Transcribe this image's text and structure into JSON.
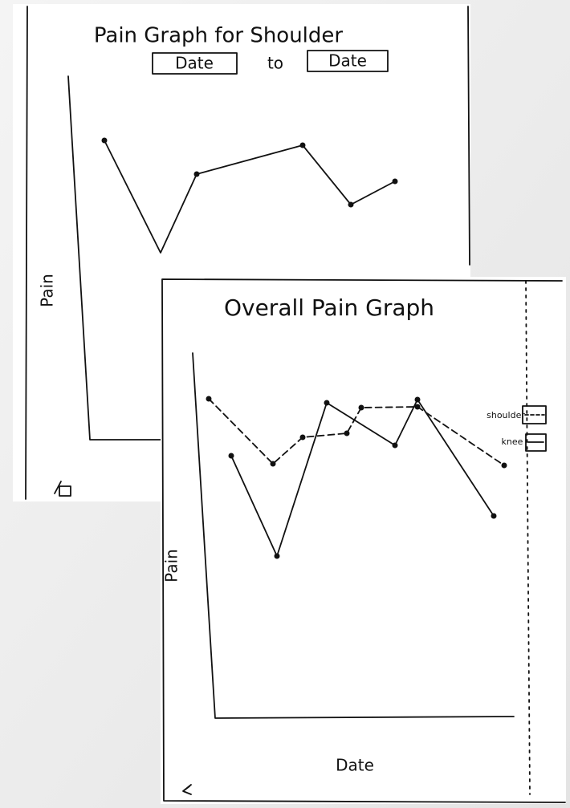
{
  "sketch_1": {
    "title": "Pain Graph for Shoulder",
    "start_date": "Date",
    "separator": "to",
    "end_date": "Date",
    "y_label": "Pain"
  },
  "sketch_2": {
    "title": "Overall Pain Graph",
    "y_label": "Pain",
    "x_label": "Date",
    "legend": [
      "shoulder",
      "knee"
    ]
  }
}
